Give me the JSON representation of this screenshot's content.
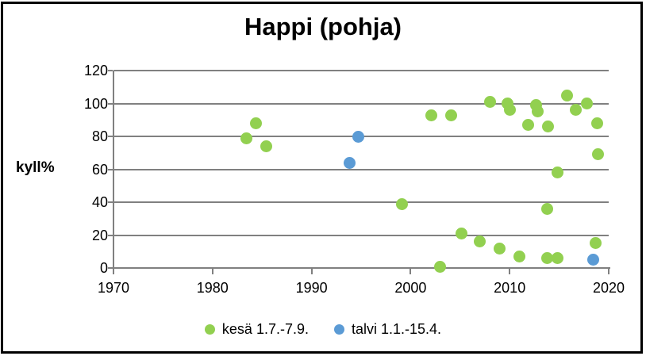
{
  "title": "Happi (pohja)",
  "y_axis_label": "kyll%",
  "colors": {
    "summer": "#92D050",
    "winter": "#5B9BD5",
    "gridline": "#808080",
    "text": "#000000",
    "frame_border": "#000000"
  },
  "chart_data": {
    "type": "scatter",
    "title": "Happi (pohja)",
    "xlabel": "",
    "ylabel": "kyll%",
    "xlim": [
      1970,
      2020
    ],
    "ylim": [
      0,
      120
    ],
    "x_ticks": [
      1970,
      1980,
      1990,
      2000,
      2010,
      2020
    ],
    "y_ticks": [
      0,
      20,
      40,
      60,
      80,
      100,
      120
    ],
    "grid": "horizontal",
    "legend_position": "bottom",
    "series": [
      {
        "name": "kesä 1.7.-7.9.",
        "color": "#92D050",
        "marker": "circle",
        "points": [
          [
            1983.4,
            79
          ],
          [
            1984.4,
            88
          ],
          [
            1985.4,
            74
          ],
          [
            1999.1,
            39
          ],
          [
            2002.1,
            93
          ],
          [
            2003.0,
            0.5
          ],
          [
            2004.1,
            93
          ],
          [
            2005.1,
            21
          ],
          [
            2007.0,
            16
          ],
          [
            2008.0,
            101
          ],
          [
            2009.0,
            12
          ],
          [
            2009.8,
            100
          ],
          [
            2010.0,
            96
          ],
          [
            2011.0,
            7
          ],
          [
            2011.9,
            87
          ],
          [
            2012.7,
            99
          ],
          [
            2012.8,
            95
          ],
          [
            2013.8,
            36
          ],
          [
            2013.8,
            6
          ],
          [
            2013.9,
            86
          ],
          [
            2014.8,
            58
          ],
          [
            2014.8,
            6
          ],
          [
            2015.8,
            105
          ],
          [
            2016.7,
            96
          ],
          [
            2017.8,
            100
          ],
          [
            2018.7,
            15
          ],
          [
            2018.8,
            88
          ],
          [
            2018.9,
            69
          ]
        ]
      },
      {
        "name": "talvi 1.1.-15.4.",
        "color": "#5B9BD5",
        "marker": "circle",
        "points": [
          [
            1993.8,
            64
          ],
          [
            1994.7,
            80
          ],
          [
            2018.4,
            5
          ]
        ]
      }
    ]
  }
}
